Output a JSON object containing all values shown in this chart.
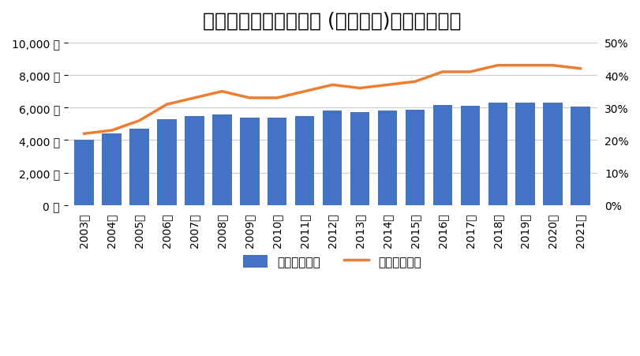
{
  "title": "社会人大学院入学者数 (博士課程)と全体比割合",
  "years": [
    "2003年",
    "2004年",
    "2005年",
    "2006年",
    "2007年",
    "2008年",
    "2009年",
    "2010年",
    "2011年",
    "2012年",
    "2013年",
    "2014年",
    "2015年",
    "2016年",
    "2017年",
    "2018年",
    "2019年",
    "2020年",
    "2021年"
  ],
  "bar_values": [
    4000,
    4400,
    4700,
    5300,
    5500,
    5600,
    5400,
    5400,
    5500,
    5800,
    5700,
    5800,
    5850,
    6150,
    6100,
    6300,
    6300,
    6300,
    6050
  ],
  "line_values": [
    22,
    23,
    26,
    31,
    33,
    35,
    33,
    33,
    35,
    37,
    36,
    37,
    38,
    41,
    41,
    43,
    43,
    43,
    42
  ],
  "bar_color": "#4472C4",
  "line_color": "#ED7D31",
  "legend_bar": "社会人の人数",
  "legend_line": "社会人の割合",
  "ylim_left": [
    0,
    10000
  ],
  "ylim_right": [
    0,
    50
  ],
  "yticks_left": [
    0,
    2000,
    4000,
    6000,
    8000,
    10000
  ],
  "yticks_right": [
    0,
    10,
    20,
    30,
    40,
    50
  ],
  "background_color": "#ffffff",
  "grid_color": "#cccccc",
  "title_fontsize": 18,
  "tick_fontsize": 10,
  "legend_fontsize": 11
}
